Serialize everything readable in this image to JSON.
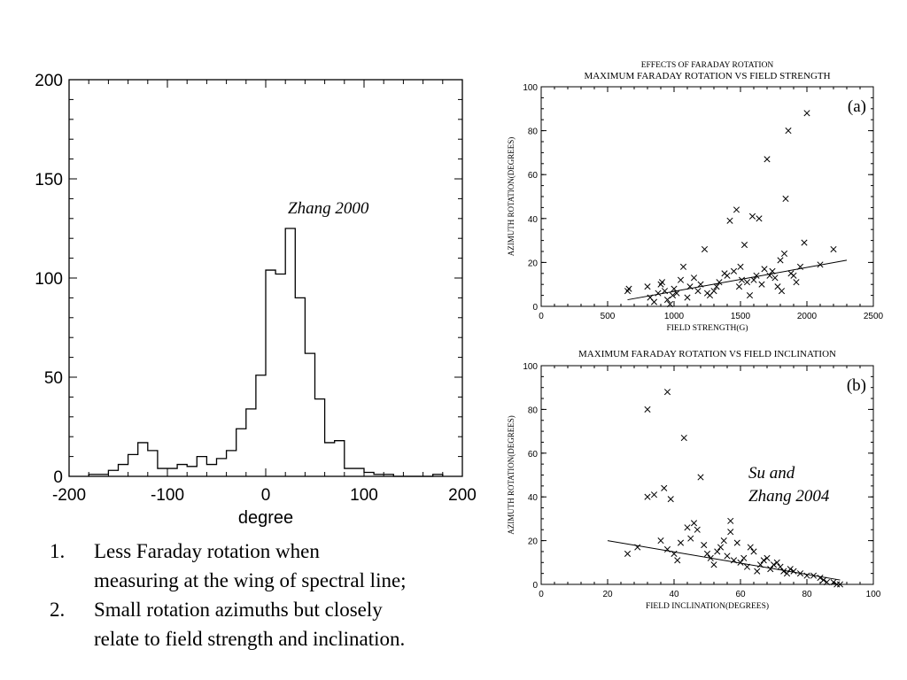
{
  "annotations": {
    "zhang": "Zhang 2000",
    "su_line1": "Su and",
    "su_line2": "Zhang 2004"
  },
  "conclusions": [
    {
      "num": "1.",
      "line1": "Less Faraday rotation when",
      "line2": "measuring at the wing of spectral line;"
    },
    {
      "num": "2.",
      "line1": "Small rotation azimuths but closely",
      "line2": "relate to field strength and inclination."
    }
  ],
  "chart_data": [
    {
      "type": "bar",
      "title": "",
      "xlabel": "degree",
      "ylabel": "",
      "xlim": [
        -200,
        200
      ],
      "ylim": [
        0,
        200
      ],
      "xticks": [
        -200,
        -100,
        0,
        100,
        200
      ],
      "yticks": [
        0,
        50,
        100,
        150,
        200
      ],
      "bin_width": 10,
      "bins_start": [
        -180,
        -170,
        -160,
        -150,
        -140,
        -130,
        -120,
        -110,
        -100,
        -90,
        -80,
        -70,
        -60,
        -50,
        -40,
        -30,
        -20,
        -10,
        0,
        10,
        20,
        30,
        40,
        50,
        60,
        70,
        80,
        90,
        100,
        110,
        120,
        130,
        140,
        150,
        160,
        170
      ],
      "values": [
        1,
        1,
        3,
        6,
        11,
        17,
        13,
        4,
        4,
        6,
        5,
        10,
        6,
        9,
        13,
        24,
        34,
        51,
        104,
        102,
        125,
        90,
        62,
        39,
        17,
        18,
        4,
        4,
        2,
        1,
        1,
        0,
        0,
        0,
        0,
        1
      ]
    },
    {
      "type": "scatter",
      "suptitle": "EFFECTS OF FARADAY ROTATION",
      "title": "MAXIMUM  FARADAY  ROTATION  VS  FIELD  STRENGTH",
      "panel_label": "(a)",
      "xlabel": "FIELD STRENGTH(G)",
      "ylabel": "AZIMUTH  ROTATION(DEGREES)",
      "xlim": [
        0,
        2500
      ],
      "ylim": [
        0,
        100
      ],
      "xticks": [
        0,
        500,
        1000,
        1500,
        2000,
        2500
      ],
      "yticks": [
        0,
        20,
        40,
        60,
        80,
        100
      ],
      "fit_line": [
        [
          650,
          3
        ],
        [
          2300,
          21
        ]
      ],
      "points": [
        [
          650,
          7
        ],
        [
          660,
          8
        ],
        [
          800,
          9
        ],
        [
          820,
          4
        ],
        [
          850,
          2
        ],
        [
          880,
          6
        ],
        [
          900,
          10
        ],
        [
          910,
          11
        ],
        [
          930,
          7
        ],
        [
          950,
          3
        ],
        [
          970,
          1
        ],
        [
          990,
          5
        ],
        [
          1000,
          8
        ],
        [
          1020,
          6
        ],
        [
          1050,
          12
        ],
        [
          1070,
          18
        ],
        [
          1100,
          4
        ],
        [
          1120,
          9
        ],
        [
          1150,
          13
        ],
        [
          1180,
          7
        ],
        [
          1200,
          10
        ],
        [
          1230,
          26
        ],
        [
          1250,
          6
        ],
        [
          1270,
          5
        ],
        [
          1300,
          7
        ],
        [
          1320,
          9
        ],
        [
          1340,
          11
        ],
        [
          1380,
          15
        ],
        [
          1400,
          14
        ],
        [
          1420,
          39
        ],
        [
          1450,
          16
        ],
        [
          1470,
          44
        ],
        [
          1490,
          9
        ],
        [
          1500,
          18
        ],
        [
          1510,
          12
        ],
        [
          1530,
          28
        ],
        [
          1550,
          11
        ],
        [
          1570,
          5
        ],
        [
          1590,
          41
        ],
        [
          1600,
          12
        ],
        [
          1620,
          14
        ],
        [
          1640,
          40
        ],
        [
          1660,
          10
        ],
        [
          1680,
          17
        ],
        [
          1700,
          67
        ],
        [
          1720,
          14
        ],
        [
          1740,
          16
        ],
        [
          1760,
          13
        ],
        [
          1780,
          9
        ],
        [
          1800,
          21
        ],
        [
          1810,
          7
        ],
        [
          1830,
          24
        ],
        [
          1840,
          49
        ],
        [
          1860,
          80
        ],
        [
          1880,
          15
        ],
        [
          1900,
          14
        ],
        [
          1920,
          11
        ],
        [
          1950,
          18
        ],
        [
          1980,
          29
        ],
        [
          2000,
          88
        ],
        [
          2100,
          19
        ],
        [
          2200,
          26
        ]
      ]
    },
    {
      "type": "scatter",
      "title": "MAXIMUM  FARADAY  ROTATION  VS  FIELD  INCLINATION",
      "panel_label": "(b)",
      "xlabel": "FIELD INCLINATION(DEGREES)",
      "ylabel": "AZIMUTH  ROTATION(DEGREES)",
      "xlim": [
        0,
        100
      ],
      "ylim": [
        0,
        100
      ],
      "xticks": [
        0,
        20,
        40,
        60,
        80,
        100
      ],
      "yticks": [
        0,
        20,
        40,
        60,
        80,
        100
      ],
      "fit_line": [
        [
          20,
          20
        ],
        [
          90,
          2
        ]
      ],
      "points": [
        [
          26,
          14
        ],
        [
          29,
          17
        ],
        [
          32,
          80
        ],
        [
          32,
          40
        ],
        [
          34,
          41
        ],
        [
          36,
          20
        ],
        [
          37,
          44
        ],
        [
          38,
          88
        ],
        [
          38,
          16
        ],
        [
          39,
          39
        ],
        [
          40,
          14
        ],
        [
          41,
          11
        ],
        [
          42,
          19
        ],
        [
          43,
          67
        ],
        [
          44,
          26
        ],
        [
          45,
          21
        ],
        [
          46,
          28
        ],
        [
          47,
          25
        ],
        [
          48,
          49
        ],
        [
          49,
          18
        ],
        [
          50,
          14
        ],
        [
          51,
          12
        ],
        [
          52,
          9
        ],
        [
          53,
          15
        ],
        [
          54,
          17
        ],
        [
          55,
          20
        ],
        [
          56,
          13
        ],
        [
          57,
          29
        ],
        [
          57,
          24
        ],
        [
          58,
          11
        ],
        [
          59,
          19
        ],
        [
          60,
          10
        ],
        [
          61,
          12
        ],
        [
          62,
          8
        ],
        [
          63,
          17
        ],
        [
          64,
          15
        ],
        [
          65,
          6
        ],
        [
          66,
          9
        ],
        [
          67,
          11
        ],
        [
          68,
          12
        ],
        [
          69,
          7
        ],
        [
          70,
          9
        ],
        [
          71,
          10
        ],
        [
          72,
          8
        ],
        [
          73,
          6
        ],
        [
          74,
          5
        ],
        [
          75,
          7
        ],
        [
          76,
          6
        ],
        [
          78,
          5
        ],
        [
          80,
          4
        ],
        [
          82,
          4
        ],
        [
          84,
          3
        ],
        [
          85,
          2
        ],
        [
          86,
          1
        ],
        [
          88,
          1
        ],
        [
          89,
          0
        ],
        [
          90,
          0
        ]
      ]
    }
  ]
}
